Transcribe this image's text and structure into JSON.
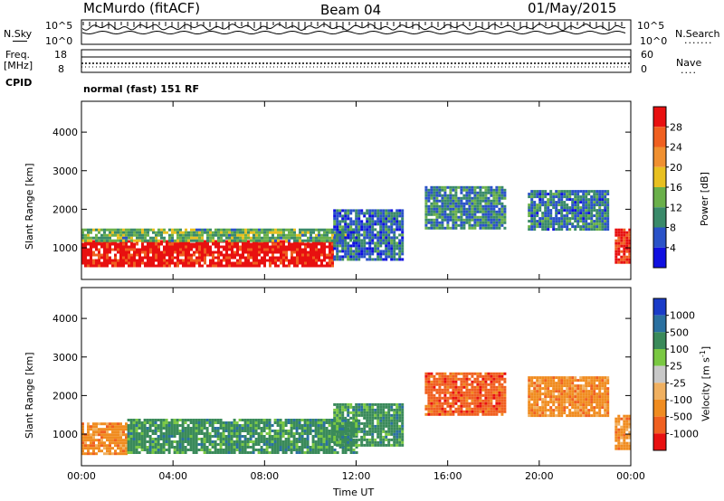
{
  "header": {
    "station": "McMurdo (fitACF)",
    "beam": "Beam 04",
    "date": "01/May/2015"
  },
  "top_panels": {
    "nsky_label": "N.Sky",
    "nsky_top": "10^5",
    "nsky_bottom": "10^0",
    "nsearch_label": "N.Search",
    "nsearch_dots": ".......",
    "nsearch_top": "10^5",
    "nsearch_bottom": "10^0",
    "freq_label": "Freq.",
    "freq_unit": "[MHz]",
    "freq_top": "18",
    "freq_bottom": "8",
    "nave_label": "Nave",
    "nave_dots": "....",
    "nave_top": "60",
    "nave_bottom": "0",
    "cpid_label": "CPID",
    "cpid_text": "normal (fast) 151 RF"
  },
  "colors": {
    "power": [
      "#1010e0",
      "#2a52c8",
      "#3a8a6a",
      "#6ab04a",
      "#e8c020",
      "#f09030",
      "#f06020",
      "#e81010"
    ],
    "velocity": [
      "#e81010",
      "#f06020",
      "#f08c20",
      "#f0b060",
      "#c8c8c8",
      "#7ac842",
      "#3a8a5a",
      "#2a70a0",
      "#1a3cc8"
    ]
  },
  "chart_data": [
    {
      "type": "heatmap",
      "title": "",
      "xlabel": "Time UT",
      "ylabel": "Slant Range [km]",
      "xlim": [
        "00:00",
        "00:00"
      ],
      "ylim": [
        180,
        4800
      ],
      "x_ticks": [
        "00:00",
        "04:00",
        "08:00",
        "12:00",
        "16:00",
        "20:00",
        "00:00"
      ],
      "y_ticks": [
        "1000",
        "2000",
        "3000",
        "4000"
      ],
      "colorbar": {
        "label": "Power [dB]",
        "ticks": [
          "4",
          "8",
          "12",
          "16",
          "20",
          "24",
          "28"
        ],
        "range": [
          0,
          30
        ]
      },
      "regions": [
        {
          "t_start": 0.0,
          "t_end": 11.0,
          "r_min": 500,
          "r_max": 1200,
          "level": 29
        },
        {
          "t_start": 0.0,
          "t_end": 12.0,
          "r_min": 1200,
          "r_max": 1500,
          "level": 12
        },
        {
          "t_start": 11.0,
          "t_end": 14.0,
          "r_min": 700,
          "r_max": 2000,
          "level": 7
        },
        {
          "t_start": 15.0,
          "t_end": 18.5,
          "r_min": 1500,
          "r_max": 2600,
          "level": 9
        },
        {
          "t_start": 19.5,
          "t_end": 23.0,
          "r_min": 1500,
          "r_max": 2500,
          "level": 8
        },
        {
          "t_start": 23.3,
          "t_end": 24.0,
          "r_min": 600,
          "r_max": 1500,
          "level": 28
        }
      ]
    },
    {
      "type": "heatmap",
      "title": "",
      "xlabel": "Time UT",
      "ylabel": "Slant Range [km]",
      "xlim": [
        "00:00",
        "00:00"
      ],
      "ylim": [
        180,
        4800
      ],
      "x_ticks": [
        "00:00",
        "04:00",
        "08:00",
        "12:00",
        "16:00",
        "20:00",
        "00:00"
      ],
      "y_ticks": [
        "1000",
        "2000",
        "3000",
        "4000"
      ],
      "colorbar": {
        "label": "Velocity [m s",
        "label_exp": "-1",
        "ticks": [
          "1000",
          "500",
          "100",
          "25",
          "-25",
          "-100",
          "-500",
          "-1000"
        ]
      },
      "regions": [
        {
          "t_start": 0.0,
          "t_end": 2.0,
          "r_min": 500,
          "r_max": 1300,
          "level": 2
        },
        {
          "t_start": 2.0,
          "t_end": 12.0,
          "r_min": 500,
          "r_max": 1400,
          "level": 6
        },
        {
          "t_start": 11.0,
          "t_end": 14.0,
          "r_min": 700,
          "r_max": 1800,
          "level": 6
        },
        {
          "t_start": 15.0,
          "t_end": 18.5,
          "r_min": 1500,
          "r_max": 2600,
          "level": 1
        },
        {
          "t_start": 19.5,
          "t_end": 23.0,
          "r_min": 1500,
          "r_max": 2500,
          "level": 2
        },
        {
          "t_start": 23.3,
          "t_end": 24.0,
          "r_min": 600,
          "r_max": 1500,
          "level": 2
        }
      ]
    }
  ]
}
